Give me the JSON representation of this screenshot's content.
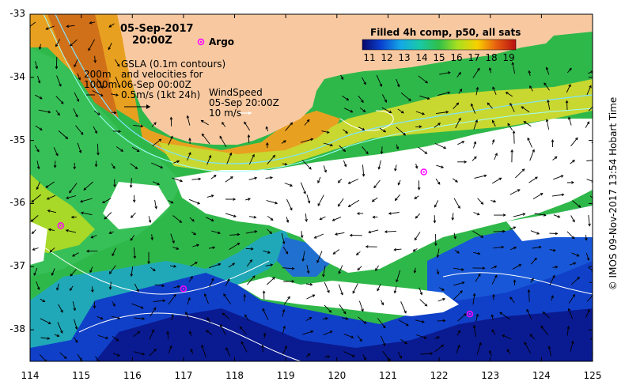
{
  "map": {
    "title_date": "05-Sep-2017",
    "title_time": "20:00Z",
    "argo_label": "Argo",
    "depth_contours": [
      "200m",
      "1000m"
    ],
    "gsla_lines": [
      "GSLA (0.1m contours)",
      "and velocities for",
      "06-Sep 00:00Z",
      "0.5m/s (1kt 24h)"
    ],
    "wind_lines": [
      "WindSpeed",
      "05-Sep 20:00Z",
      "10 m/s"
    ],
    "colorbar_title": "Filled 4h comp, p50, all sats",
    "colorbar_ticks": [
      "11",
      "12",
      "13",
      "14",
      "15",
      "16",
      "17",
      "18",
      "19"
    ],
    "y_ticks": [
      "-33",
      "-34",
      "-35",
      "-36",
      "-37",
      "-38"
    ],
    "x_ticks": [
      "114",
      "115",
      "116",
      "117",
      "118",
      "119",
      "120",
      "121",
      "122",
      "123",
      "124",
      "125"
    ],
    "credit": "© IMOS 09-Nov-2017 13:54 Hobart Time",
    "colors": {
      "land": "#f8c9a1",
      "cloud": "#ffffff",
      "contour_200": "#7fe4ff",
      "contour_1000": "#a0ffff",
      "argo": "#ff00ff"
    },
    "argo_floats": [
      {
        "lon": 114.6,
        "lat": -36.35
      },
      {
        "lon": 117.0,
        "lat": -37.35
      },
      {
        "lon": 121.7,
        "lat": -35.5
      },
      {
        "lon": 122.6,
        "lat": -37.75
      }
    ]
  }
}
